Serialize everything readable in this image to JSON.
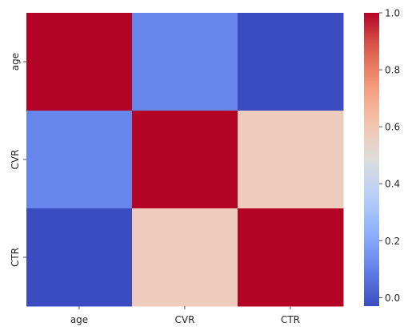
{
  "chart_data": {
    "type": "heatmap",
    "title": "",
    "xlabel": "",
    "ylabel": "",
    "x_categories": [
      "age",
      "CVR",
      "CTR"
    ],
    "y_categories": [
      "age",
      "CVR",
      "CTR"
    ],
    "values": [
      [
        1.0,
        0.11,
        -0.03
      ],
      [
        0.11,
        1.0,
        0.57
      ],
      [
        -0.03,
        0.57,
        1.0
      ]
    ],
    "colormap": "coolwarm",
    "color_range": [
      -0.03,
      1.0
    ],
    "colorbar": {
      "ticks": [
        0.0,
        0.2,
        0.4,
        0.6,
        0.8,
        1.0
      ],
      "tick_labels": [
        "0.0",
        "0.2",
        "0.4",
        "0.6",
        "0.8",
        "1.0"
      ],
      "placement": "right"
    },
    "grid": false
  }
}
